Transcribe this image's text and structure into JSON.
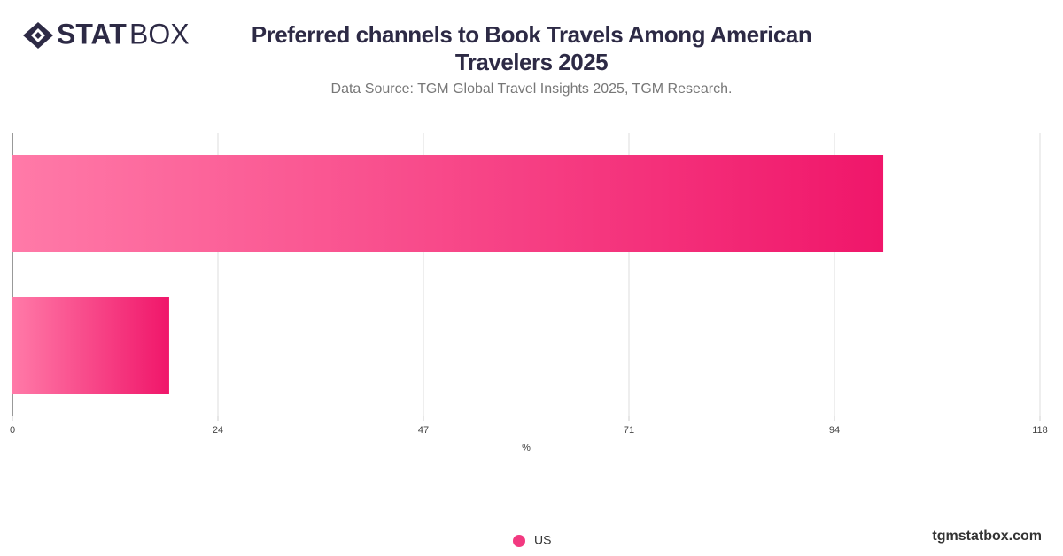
{
  "brand": {
    "logo_bold": "STAT",
    "logo_light": "BOX",
    "site": "tgmstatbox.com"
  },
  "chart_data": {
    "type": "barh",
    "title": "Preferred channels to Book Travels Among American Travelers 2025",
    "subtitle": "Data Source: TGM Global Travel Insights 2025, TGM Research.",
    "x_label": "%",
    "categories": [
      null,
      null
    ],
    "series": [
      {
        "name": "US",
        "color": "#f0166a",
        "color_light": "#ff7aa8",
        "values": [
          100,
          18
        ]
      }
    ],
    "xlim": [
      0,
      118
    ],
    "xticks": [
      0,
      {
        "value": 23.6,
        "label": "24"
      },
      {
        "value": 47.2,
        "label": "47"
      },
      {
        "value": 70.8,
        "label": "71"
      },
      {
        "value": 94.4,
        "label": "94"
      },
      118
    ],
    "grid": true
  }
}
